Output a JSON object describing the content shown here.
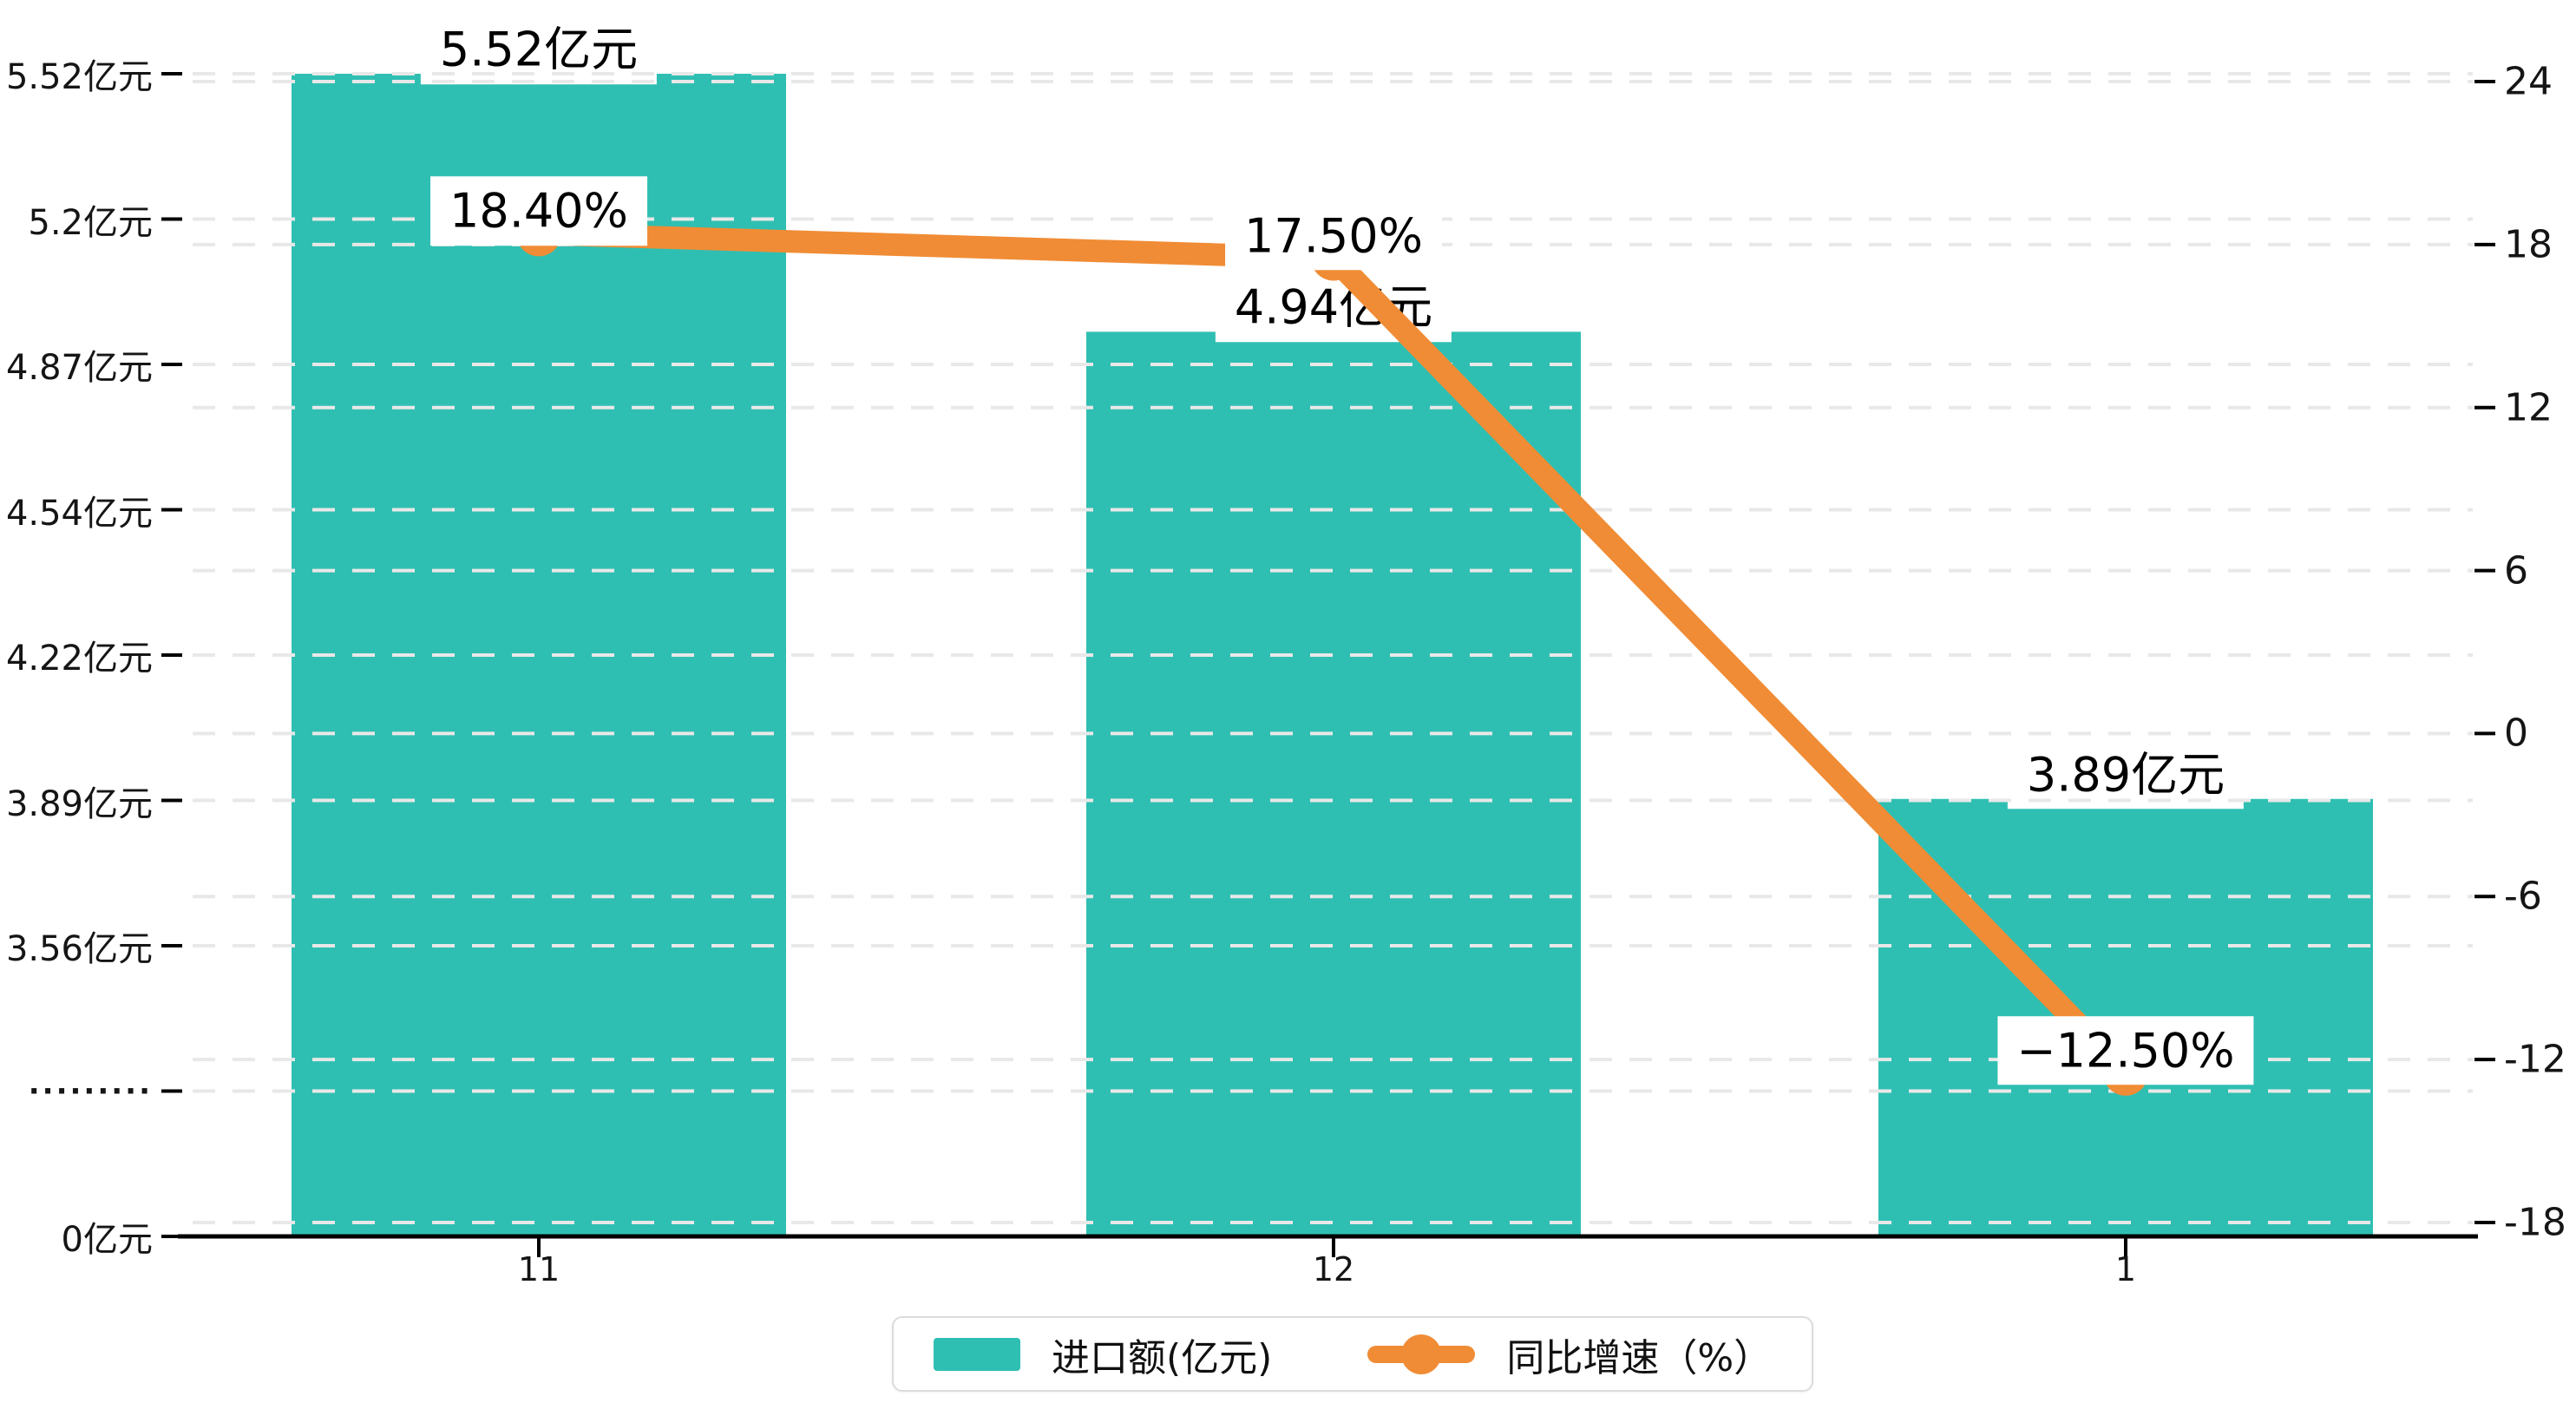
{
  "chart_data": {
    "type": "bar+line",
    "categories": [
      "11",
      "12",
      "1"
    ],
    "series": [
      {
        "name": "进口额(亿元)",
        "type": "bar",
        "axis": "left",
        "color": "#2fbfb2",
        "values": [
          5.52,
          4.94,
          3.89
        ],
        "data_labels": [
          "5.52亿元",
          "4.94亿元",
          "3.89亿元"
        ]
      },
      {
        "name": "同比增速（%）",
        "type": "line",
        "axis": "right",
        "color": "#f08c35",
        "values": [
          18.4,
          17.5,
          -12.5
        ],
        "data_labels": [
          "18.40%",
          "17.50%",
          "−12.50%"
        ]
      }
    ],
    "left_axis": {
      "unit": "亿元",
      "broken_axis": true,
      "tick_labels": [
        "5.52亿元",
        "5.2亿元",
        "4.87亿元",
        "4.54亿元",
        "4.22亿元",
        "3.89亿元",
        "3.56亿元",
        "·········",
        "0亿元"
      ],
      "tick_values": [
        5.52,
        5.2,
        4.87,
        4.54,
        4.22,
        3.89,
        3.56,
        null,
        0
      ]
    },
    "right_axis": {
      "tick_labels": [
        "24",
        "18",
        "12",
        "6",
        "0",
        "-6",
        "-12",
        "-18"
      ],
      "tick_values": [
        24,
        18,
        12,
        6,
        0,
        -6,
        -12,
        -18
      ],
      "max": 24,
      "min": -18
    },
    "x_axis": {
      "tick_labels": [
        "11",
        "12",
        "1"
      ]
    },
    "legend": {
      "position": "bottom",
      "items": [
        {
          "label": "进口额(亿元)",
          "marker": "bar-swatch",
          "color": "#2fbfb2"
        },
        {
          "label": "同比增速（%）",
          "marker": "line-dot",
          "color": "#f08c35"
        }
      ]
    },
    "grid": {
      "show": true,
      "style": "dashed",
      "color": "#e8e8e8"
    }
  }
}
